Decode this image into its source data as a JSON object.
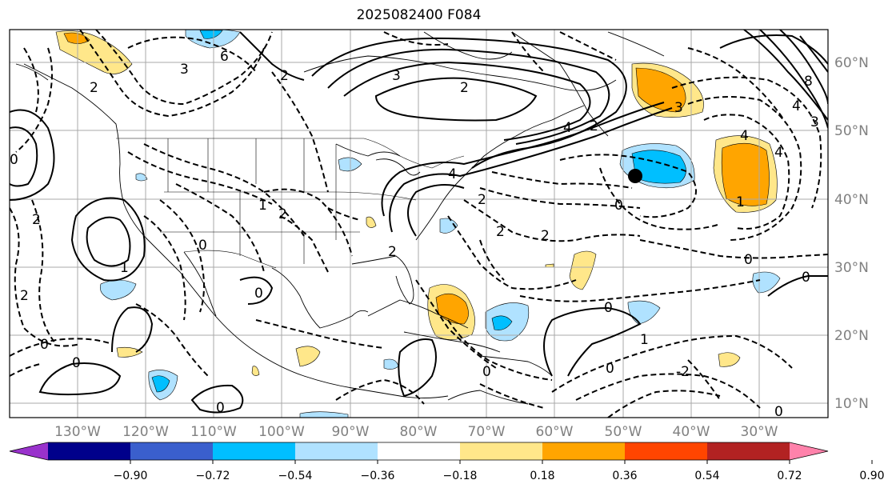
{
  "title": "2025082400 F084",
  "lat_labels": [
    "60°N",
    "50°N",
    "40°N",
    "30°N",
    "20°N",
    "10°N"
  ],
  "lon_labels": [
    "130°W",
    "120°W",
    "110°W",
    "100°W",
    "90°W",
    "80°W",
    "70°W",
    "60°W",
    "50°W",
    "40°W",
    "30°W"
  ],
  "colorbar": {
    "colors": [
      "#9932cc",
      "#00008b",
      "#3a5fcd",
      "#00bfff",
      "#b0e2ff",
      "#ffffff",
      "#ffe78a",
      "#ffa500",
      "#ff4500",
      "#b22222",
      "#ff82ab"
    ],
    "ticks": [
      "−0.90",
      "−0.72",
      "−0.54",
      "−0.36",
      "−0.18",
      "0.18",
      "0.36",
      "0.54",
      "0.72",
      "0.90"
    ]
  },
  "contour_labels": [
    "0",
    "2",
    "3",
    "6",
    "-2",
    "1",
    "4",
    "8"
  ],
  "marker": "storm-position-dot"
}
